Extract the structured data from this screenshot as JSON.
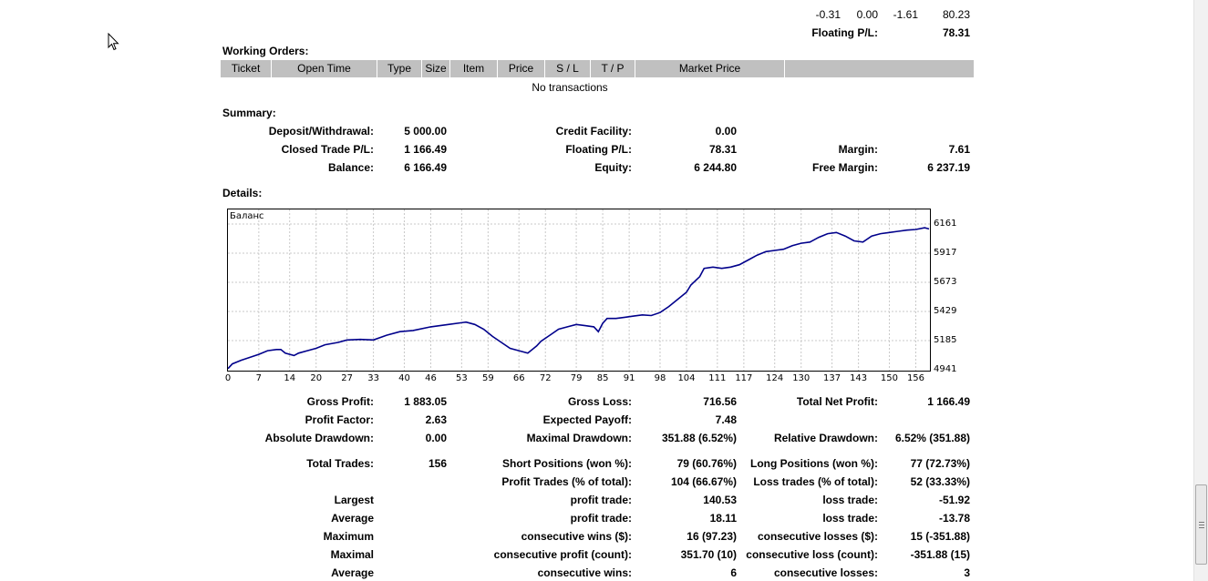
{
  "top_row": {
    "values": [
      "-0.31",
      "0.00",
      "-1.61",
      "80.23"
    ],
    "floating_label": "Floating P/L:",
    "floating_value": "78.31"
  },
  "working_orders": {
    "title": "Working Orders:",
    "columns": [
      "Ticket",
      "Open Time",
      "Type",
      "Size",
      "Item",
      "Price",
      "S / L",
      "T / P",
      "Market Price",
      ""
    ],
    "empty_text": "No transactions"
  },
  "summary": {
    "title": "Summary:",
    "deposit_label": "Deposit/Withdrawal:",
    "deposit_value": "5 000.00",
    "credit_label": "Credit Facility:",
    "credit_value": "0.00",
    "closed_label": "Closed Trade P/L:",
    "closed_value": "1 166.49",
    "floating_label": "Floating P/L:",
    "floating_value": "78.31",
    "margin_label": "Margin:",
    "margin_value": "7.61",
    "balance_label": "Balance:",
    "balance_value": "6 166.49",
    "equity_label": "Equity:",
    "equity_value": "6 244.80",
    "free_margin_label": "Free Margin:",
    "free_margin_value": "6 237.19"
  },
  "details": {
    "title": "Details:"
  },
  "chart_data": {
    "type": "line",
    "title": "Баланс",
    "x_ticks": [
      "0",
      "7",
      "14",
      "20",
      "27",
      "33",
      "40",
      "46",
      "53",
      "59",
      "66",
      "72",
      "79",
      "85",
      "91",
      "98",
      "104",
      "111",
      "117",
      "124",
      "130",
      "137",
      "143",
      "150",
      "156"
    ],
    "y_ticks": [
      "6161",
      "5917",
      "5673",
      "5429",
      "5185",
      "4941"
    ],
    "xlim": [
      0,
      159
    ],
    "ylim": [
      4941,
      6161
    ],
    "grid": true,
    "series": [
      {
        "color": "#00008b",
        "x": [
          0,
          1,
          3,
          5,
          7,
          9,
          11,
          12,
          13,
          15,
          16,
          18,
          20,
          22,
          25,
          27,
          30,
          33,
          36,
          39,
          42,
          46,
          50,
          54,
          56,
          58,
          60,
          62,
          64,
          66,
          68,
          70,
          71,
          73,
          75,
          77,
          79,
          81,
          83,
          84,
          85,
          86,
          88,
          90,
          92,
          94,
          96,
          98,
          100,
          102,
          104,
          105,
          107,
          108,
          110,
          112,
          114,
          116,
          118,
          120,
          122,
          124,
          126,
          128,
          130,
          132,
          134,
          136,
          138,
          140,
          142,
          144,
          146,
          148,
          150,
          152,
          154,
          156,
          158,
          159
        ],
        "y": [
          4950,
          4990,
          5020,
          5045,
          5070,
          5100,
          5110,
          5110,
          5080,
          5060,
          5080,
          5100,
          5120,
          5150,
          5170,
          5190,
          5195,
          5190,
          5230,
          5260,
          5270,
          5300,
          5320,
          5340,
          5320,
          5280,
          5220,
          5170,
          5120,
          5100,
          5080,
          5140,
          5180,
          5230,
          5280,
          5300,
          5320,
          5310,
          5300,
          5260,
          5330,
          5370,
          5370,
          5380,
          5390,
          5400,
          5395,
          5420,
          5470,
          5530,
          5590,
          5650,
          5720,
          5790,
          5800,
          5790,
          5800,
          5820,
          5860,
          5900,
          5930,
          5940,
          5950,
          5980,
          6000,
          6010,
          6050,
          6080,
          6090,
          6060,
          6020,
          6010,
          6060,
          6080,
          6090,
          6100,
          6110,
          6115,
          6130,
          6120
        ]
      }
    ]
  },
  "stats": {
    "gross_profit_label": "Gross Profit:",
    "gross_profit": "1 883.05",
    "gross_loss_label": "Gross Loss:",
    "gross_loss": "716.56",
    "total_net_label": "Total Net Profit:",
    "total_net": "1 166.49",
    "profit_factor_label": "Profit Factor:",
    "profit_factor": "2.63",
    "expected_payoff_label": "Expected Payoff:",
    "expected_payoff": "7.48",
    "abs_dd_label": "Absolute Drawdown:",
    "abs_dd": "0.00",
    "max_dd_label": "Maximal Drawdown:",
    "max_dd": "351.88 (6.52%)",
    "rel_dd_label": "Relative Drawdown:",
    "rel_dd": "6.52% (351.88)",
    "total_trades_label": "Total Trades:",
    "total_trades": "156",
    "short_label": "Short Positions (won %):",
    "short": "79 (60.76%)",
    "long_label": "Long Positions (won %):",
    "long": "77 (72.73%)",
    "profit_trades_label": "Profit Trades (% of total):",
    "profit_trades": "104 (66.67%)",
    "loss_trades_label": "Loss trades (% of total):",
    "loss_trades": "52 (33.33%)",
    "largest_label": "Largest",
    "largest_profit_label": "profit trade:",
    "largest_profit": "140.53",
    "largest_loss_label": "loss trade:",
    "largest_loss": "-51.92",
    "average_label": "Average",
    "average_profit_label": "profit trade:",
    "average_profit": "18.11",
    "average_loss_label": "loss trade:",
    "average_loss": "-13.78",
    "maximum_label": "Maximum",
    "max_wins_label": "consecutive wins ($):",
    "max_wins": "16 (97.23)",
    "max_losses_label": "consecutive losses ($):",
    "max_losses": "15 (-351.88)",
    "maximal_label": "Maximal",
    "maximal_profit_label": "consecutive profit (count):",
    "maximal_profit": "351.70 (10)",
    "maximal_loss_label": "consecutive loss (count):",
    "maximal_loss": "-351.88 (15)",
    "avg2_label": "Average",
    "avg_wins_label": "consecutive wins:",
    "avg_wins": "6",
    "avg_losses_label": "consecutive losses:",
    "avg_losses": "3"
  }
}
